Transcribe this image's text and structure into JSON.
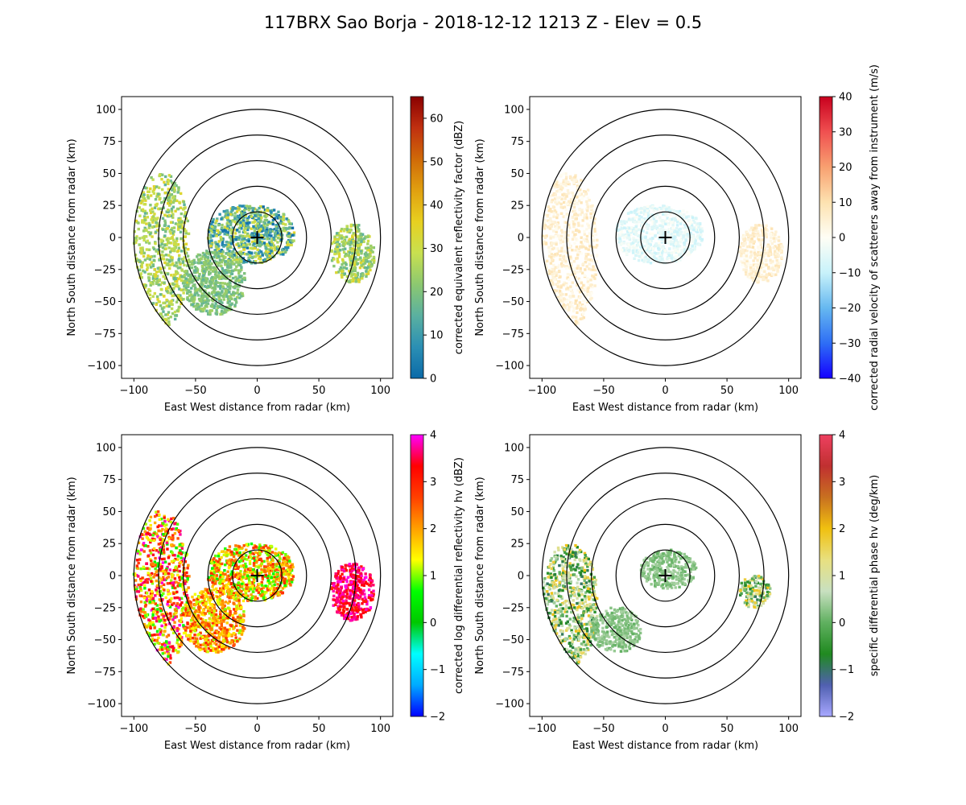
{
  "figure": {
    "title": "117BRX Sao Borja - 2018-12-12 1213 Z -  Elev = 0.5"
  },
  "chart_data": [
    {
      "type": "heatmap",
      "panel": "top-left",
      "field": "reflectivity",
      "xlabel": "East West distance from radar (km)",
      "ylabel": "North South distance from radar (km)",
      "xlim": [
        -110,
        110
      ],
      "ylim": [
        -110,
        110
      ],
      "xticks": [
        -100,
        -50,
        0,
        50,
        100
      ],
      "yticks": [
        -100,
        -75,
        -50,
        -25,
        0,
        25,
        50,
        75,
        100
      ],
      "range_rings_km": [
        20,
        40,
        60,
        80,
        100
      ],
      "radar_location": [
        0,
        0
      ],
      "colorbar": {
        "label": "corrected equivalent reflectivity factor (dBZ)",
        "min": 0,
        "max": 65,
        "ticks": [
          0,
          10,
          20,
          30,
          40,
          50,
          60
        ],
        "colors": [
          "#0b6aa8",
          "#2b8fb4",
          "#5ab0a0",
          "#8cc870",
          "#c8e050",
          "#e8d020",
          "#e0a010",
          "#d06a08",
          "#c03010",
          "#8a0000"
        ]
      },
      "echo_regions": [
        {
          "description": "western sector",
          "x_range": [
            -100,
            -55
          ],
          "y_range": [
            -70,
            50
          ],
          "dbz_range": [
            15,
            35
          ]
        },
        {
          "description": "near radar",
          "x_range": [
            -40,
            30
          ],
          "y_range": [
            -20,
            25
          ],
          "dbz_range": [
            0,
            35
          ]
        },
        {
          "description": "southwest band",
          "x_range": [
            -60,
            -10
          ],
          "y_range": [
            -60,
            -10
          ],
          "dbz_range": [
            15,
            25
          ]
        },
        {
          "description": "east cells",
          "x_range": [
            60,
            95
          ],
          "y_range": [
            -35,
            10
          ],
          "dbz_range": [
            15,
            35
          ]
        }
      ]
    },
    {
      "type": "heatmap",
      "panel": "top-right",
      "field": "velocity",
      "xlabel": "East West distance from radar (km)",
      "ylabel": "North South distance from radar (km)",
      "xlim": [
        -110,
        110
      ],
      "ylim": [
        -110,
        110
      ],
      "xticks": [
        -100,
        -50,
        0,
        50,
        100
      ],
      "yticks": [
        -100,
        -75,
        -50,
        -25,
        0,
        25,
        50,
        75,
        100
      ],
      "range_rings_km": [
        20,
        40,
        60,
        80,
        100
      ],
      "radar_location": [
        0,
        0
      ],
      "colorbar": {
        "label": "corrected radial velocity of scatterers away from instrument (m/s)",
        "min": -40,
        "max": 40,
        "ticks": [
          -40,
          -30,
          -20,
          -10,
          0,
          10,
          20,
          30,
          40
        ],
        "colors": [
          "#1400ff",
          "#2e6ef5",
          "#66b8f0",
          "#c8f2fa",
          "#fffef5",
          "#fde2b0",
          "#f8a070",
          "#f05050",
          "#c8001e"
        ]
      },
      "echo_regions": [
        {
          "description": "western sector",
          "x_range": [
            -100,
            -55
          ],
          "y_range": [
            -70,
            50
          ],
          "velocity_range": [
            0,
            10
          ]
        },
        {
          "description": "near radar",
          "x_range": [
            -40,
            30
          ],
          "y_range": [
            -20,
            25
          ],
          "velocity_range": [
            -10,
            0
          ]
        },
        {
          "description": "east cells",
          "x_range": [
            60,
            95
          ],
          "y_range": [
            -35,
            10
          ],
          "velocity_range": [
            0,
            10
          ]
        }
      ]
    },
    {
      "type": "heatmap",
      "panel": "bottom-left",
      "field": "differential_reflectivity",
      "xlabel": "East West distance from radar (km)",
      "ylabel": "North South distance from radar (km)",
      "xlim": [
        -110,
        110
      ],
      "ylim": [
        -110,
        110
      ],
      "xticks": [
        -100,
        -50,
        0,
        50,
        100
      ],
      "yticks": [
        -100,
        -75,
        -50,
        -25,
        0,
        25,
        50,
        75,
        100
      ],
      "range_rings_km": [
        20,
        40,
        60,
        80,
        100
      ],
      "radar_location": [
        0,
        0
      ],
      "colorbar": {
        "label": "corrected log differential reflectivity hv (dBZ)",
        "min": -2,
        "max": 4,
        "ticks": [
          -2,
          -1,
          0,
          1,
          2,
          3,
          4
        ],
        "colors": [
          "#0000ff",
          "#00aaff",
          "#00ffff",
          "#00c800",
          "#00ff00",
          "#ffff00",
          "#ffa000",
          "#ff4000",
          "#ff0000",
          "#ff00ff"
        ]
      },
      "echo_regions": [
        {
          "description": "western sector",
          "x_range": [
            -100,
            -55
          ],
          "y_range": [
            -70,
            50
          ],
          "zdr_range": [
            0.5,
            4
          ]
        },
        {
          "description": "near radar",
          "x_range": [
            -40,
            30
          ],
          "y_range": [
            -20,
            25
          ],
          "zdr_range": [
            0.5,
            3
          ]
        },
        {
          "description": "southwest band",
          "x_range": [
            -60,
            -10
          ],
          "y_range": [
            -60,
            -10
          ],
          "zdr_range": [
            1,
            3
          ]
        },
        {
          "description": "east cells",
          "x_range": [
            60,
            95
          ],
          "y_range": [
            -35,
            10
          ],
          "zdr_range": [
            3,
            4
          ]
        }
      ]
    },
    {
      "type": "heatmap",
      "panel": "bottom-right",
      "field": "specific_differential_phase",
      "xlabel": "East West distance from radar (km)",
      "ylabel": "North South distance from radar (km)",
      "xlim": [
        -110,
        110
      ],
      "ylim": [
        -110,
        110
      ],
      "xticks": [
        -100,
        -50,
        0,
        50,
        100
      ],
      "yticks": [
        -100,
        -75,
        -50,
        -25,
        0,
        25,
        50,
        75,
        100
      ],
      "range_rings_km": [
        20,
        40,
        60,
        80,
        100
      ],
      "radar_location": [
        0,
        0
      ],
      "colorbar": {
        "label": "specific differential phase hv (deg/km)",
        "min": -2,
        "max": 4,
        "ticks": [
          -2,
          -1,
          0,
          1,
          2,
          3,
          4
        ],
        "colors": [
          "#a8a8ff",
          "#5060b0",
          "#208a20",
          "#60b060",
          "#c8e0c0",
          "#e8e080",
          "#f0c010",
          "#c87020",
          "#c03030",
          "#ee4060"
        ]
      },
      "echo_regions": [
        {
          "description": "western sector",
          "x_range": [
            -100,
            -55
          ],
          "y_range": [
            -70,
            25
          ],
          "kdp_range": [
            -1,
            2
          ]
        },
        {
          "description": "near radar",
          "x_range": [
            -20,
            25
          ],
          "y_range": [
            -10,
            20
          ],
          "kdp_range": [
            0,
            0.5
          ]
        },
        {
          "description": "southwest band",
          "x_range": [
            -60,
            -20
          ],
          "y_range": [
            -60,
            -25
          ],
          "kdp_range": [
            0,
            0.5
          ]
        },
        {
          "description": "east cells",
          "x_range": [
            60,
            85
          ],
          "y_range": [
            -25,
            0
          ],
          "kdp_range": [
            -1,
            2
          ]
        }
      ]
    }
  ]
}
